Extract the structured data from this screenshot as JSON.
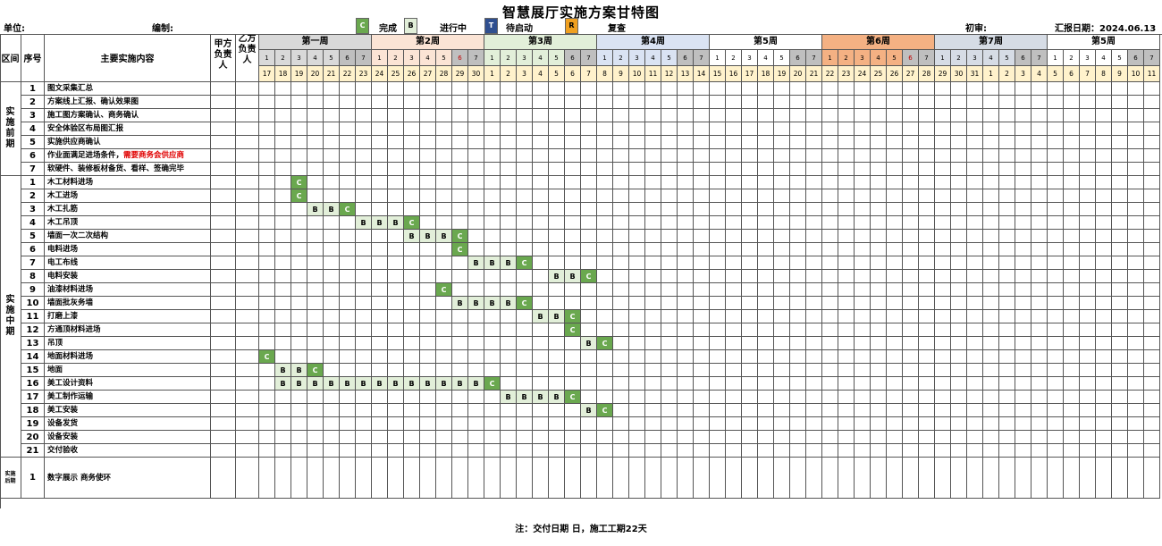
{
  "title": "智慧展厅实施方案甘特图",
  "info": {
    "unit_label": "单位:",
    "editor_label": "编制:",
    "review_label": "初审:",
    "report_date": "汇报日期：2024.06.13"
  },
  "legend": [
    {
      "code": "C",
      "label": "完成",
      "color": "#6aa84f",
      "text_color": "#fff"
    },
    {
      "code": "B",
      "label": "进行中",
      "color": "#e2efd9",
      "text_color": "#000"
    },
    {
      "code": "T",
      "label": "待启动",
      "color": "#2f4f8f",
      "text_color": "#fff"
    },
    {
      "code": "R",
      "label": "复查",
      "color": "#f0a020",
      "text_color": "#000"
    }
  ],
  "headers": {
    "zone": "区间",
    "seq": "序号",
    "content": "主要实施内容",
    "partyA": "甲方负责人",
    "partyB": "乙方负责人"
  },
  "weeks": [
    {
      "label": "第一周",
      "color": "#d9d9d9"
    },
    {
      "label": "第2周",
      "color": "#fbe4d5"
    },
    {
      "label": "第3周",
      "color": "#e2efd9"
    },
    {
      "label": "第4周",
      "color": "#dae3f3"
    },
    {
      "label": "第5周",
      "color": "#ffffff"
    },
    {
      "label": "第6周",
      "color": "#f4b183"
    },
    {
      "label": "第7周",
      "color": "#d6dce5"
    },
    {
      "label": "第5周",
      "color": "#ffffff"
    }
  ],
  "dates": [
    17,
    18,
    19,
    20,
    21,
    22,
    23,
    24,
    25,
    26,
    27,
    28,
    29,
    30,
    1,
    2,
    3,
    4,
    5,
    6,
    7,
    8,
    9,
    10,
    11,
    12,
    13,
    14,
    15,
    16,
    17,
    18,
    19,
    20,
    21,
    22,
    23,
    24,
    25,
    26,
    27,
    28,
    29,
    30,
    31,
    1,
    2,
    3,
    4,
    5,
    6,
    7,
    8,
    9,
    10,
    11
  ],
  "phases": [
    {
      "label": "实施前期",
      "tasks": [
        {
          "seq": "1",
          "name": "图文采集汇总",
          "marks": []
        },
        {
          "seq": "2",
          "name": "方案线上汇报、确认效果图",
          "marks": []
        },
        {
          "seq": "3",
          "name": "施工图方案确认、商务确认",
          "marks": []
        },
        {
          "seq": "4",
          "name": "安全体验区布局图汇报",
          "marks": []
        },
        {
          "seq": "5",
          "name": "实施供应商确认",
          "marks": []
        },
        {
          "seq": "6",
          "name": "作业面满足进场条件，",
          "name_red": "需要商务会供应商",
          "marks": []
        },
        {
          "seq": "7",
          "name": "软硬件、装修板材备货、看样、签确完毕",
          "marks": []
        }
      ]
    },
    {
      "label": "实施中期",
      "tasks": [
        {
          "seq": "1",
          "name": "木工材料进场",
          "marks": [
            [
              2,
              "C"
            ]
          ]
        },
        {
          "seq": "2",
          "name": "木工进场",
          "marks": [
            [
              2,
              "C"
            ]
          ]
        },
        {
          "seq": "3",
          "name": "木工扎筋",
          "marks": [
            [
              3,
              "B"
            ],
            [
              4,
              "B"
            ],
            [
              5,
              "C"
            ]
          ]
        },
        {
          "seq": "4",
          "name": "木工吊顶",
          "marks": [
            [
              6,
              "B"
            ],
            [
              7,
              "B"
            ],
            [
              8,
              "B"
            ],
            [
              9,
              "C"
            ]
          ]
        },
        {
          "seq": "5",
          "name": "墙面一次二次结构",
          "marks": [
            [
              9,
              "B"
            ],
            [
              10,
              "B"
            ],
            [
              11,
              "B"
            ],
            [
              12,
              "C"
            ]
          ]
        },
        {
          "seq": "6",
          "name": "电料进场",
          "marks": [
            [
              12,
              "C"
            ]
          ]
        },
        {
          "seq": "7",
          "name": "电工布线",
          "marks": [
            [
              13,
              "B"
            ],
            [
              14,
              "B"
            ],
            [
              15,
              "B"
            ],
            [
              16,
              "C"
            ]
          ]
        },
        {
          "seq": "8",
          "name": "电料安装",
          "marks": [
            [
              18,
              "B"
            ],
            [
              19,
              "B"
            ],
            [
              20,
              "C"
            ]
          ]
        },
        {
          "seq": "9",
          "name": "油漆材料进场",
          "marks": [
            [
              11,
              "C"
            ]
          ]
        },
        {
          "seq": "10",
          "name": "墙面批灰务墙",
          "marks": [
            [
              12,
              "B"
            ],
            [
              13,
              "B"
            ],
            [
              14,
              "B"
            ],
            [
              15,
              "B"
            ],
            [
              16,
              "C"
            ]
          ]
        },
        {
          "seq": "11",
          "name": "打磨上漆",
          "marks": [
            [
              17,
              "B"
            ],
            [
              18,
              "B"
            ],
            [
              19,
              "C"
            ]
          ]
        },
        {
          "seq": "12",
          "name": "方通顶材料进场",
          "marks": [
            [
              19,
              "C"
            ]
          ]
        },
        {
          "seq": "13",
          "name": "吊顶",
          "marks": [
            [
              20,
              "B"
            ],
            [
              21,
              "C"
            ]
          ]
        },
        {
          "seq": "14",
          "name": "地面材料进场",
          "marks": [
            [
              0,
              "C"
            ]
          ]
        },
        {
          "seq": "15",
          "name": "地面",
          "marks": [
            [
              1,
              "B"
            ],
            [
              2,
              "B"
            ],
            [
              3,
              "C"
            ]
          ]
        },
        {
          "seq": "16",
          "name": "美工设计资料",
          "marks": [
            [
              1,
              "B"
            ],
            [
              2,
              "B"
            ],
            [
              3,
              "B"
            ],
            [
              4,
              "B"
            ],
            [
              5,
              "B"
            ],
            [
              6,
              "B"
            ],
            [
              7,
              "B"
            ],
            [
              8,
              "B"
            ],
            [
              9,
              "B"
            ],
            [
              10,
              "B"
            ],
            [
              11,
              "B"
            ],
            [
              12,
              "B"
            ],
            [
              13,
              "B"
            ],
            [
              14,
              "C"
            ]
          ]
        },
        {
          "seq": "17",
          "name": "美工制作运输",
          "marks": [
            [
              15,
              "B"
            ],
            [
              16,
              "B"
            ],
            [
              17,
              "B"
            ],
            [
              18,
              "B"
            ],
            [
              19,
              "C"
            ]
          ]
        },
        {
          "seq": "18",
          "name": "美工安装",
          "marks": [
            [
              20,
              "B"
            ],
            [
              21,
              "C"
            ]
          ]
        },
        {
          "seq": "19",
          "name": "设备发货",
          "marks": []
        },
        {
          "seq": "20",
          "name": "设备安装",
          "marks": []
        },
        {
          "seq": "21",
          "name": "交付验收",
          "marks": []
        }
      ]
    },
    {
      "label": "实施后期",
      "tasks": [
        {
          "seq": "1",
          "name": "数字展示  商务使环",
          "marks": []
        }
      ]
    }
  ],
  "note": "注：交付日期   日，施工工期22天"
}
